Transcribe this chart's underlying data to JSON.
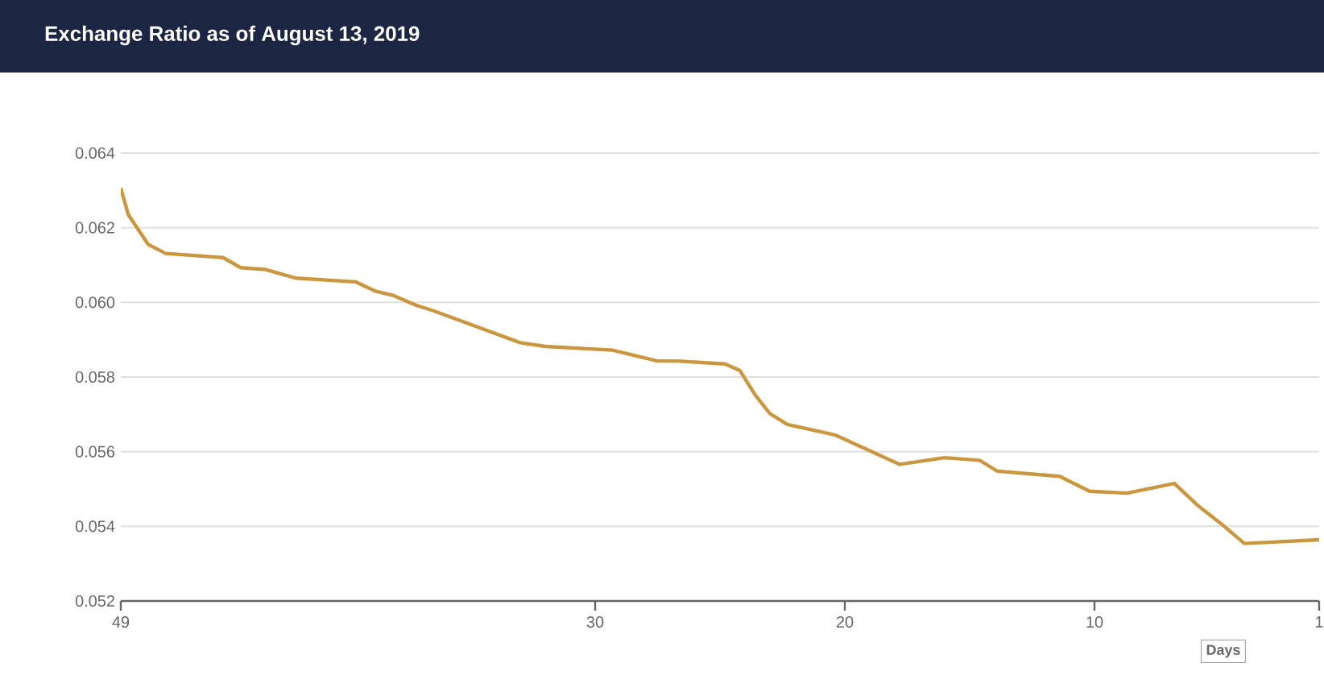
{
  "chart_data": {
    "type": "line",
    "title": "Exchange Ratio as of August 13, 2019",
    "xlabel": "Days",
    "x": [
      49,
      48.7,
      47.9,
      47.2,
      44.9,
      44.2,
      43.2,
      42.0,
      39.6,
      38.8,
      38.1,
      37.2,
      36.5,
      33.0,
      32.0,
      29.3,
      27.5,
      26.7,
      24.8,
      24.2,
      23.6,
      23.0,
      22.3,
      20.4,
      17.8,
      16.0,
      14.6,
      13.9,
      11.4,
      10.2,
      8.7,
      6.8,
      5.9,
      4.8,
      4.0,
      1
    ],
    "series": [
      {
        "color": "#c9973f",
        "values": [
          0.06306,
          0.06235,
          0.06155,
          0.06131,
          0.0612,
          0.06093,
          0.06088,
          0.06065,
          0.06055,
          0.0603,
          0.06019,
          0.05993,
          0.05978,
          0.05892,
          0.05882,
          0.05872,
          0.05843,
          0.05843,
          0.05835,
          0.05817,
          0.05753,
          0.05702,
          0.05673,
          0.05645,
          0.05566,
          0.05584,
          0.05577,
          0.05548,
          0.05534,
          0.05494,
          0.05489,
          0.05515,
          0.05458,
          0.054,
          0.05354,
          0.05364
        ]
      }
    ],
    "xlim": [
      49,
      1
    ],
    "xticks": [
      49,
      30,
      20,
      10,
      1
    ],
    "ylim": [
      0.052,
      0.064
    ],
    "yticks": [
      0.052,
      0.054,
      0.056,
      0.058,
      {
        "value": 0.06,
        "label": "0.060"
      },
      0.062,
      0.064
    ],
    "grid": "y",
    "marker": "none",
    "line_style": "solid"
  }
}
